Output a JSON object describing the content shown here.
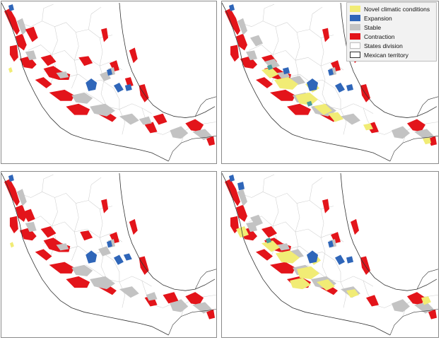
{
  "colors": {
    "novel": "#f1ec75",
    "expansion": "#2f66b9",
    "stable": "#c3c3c3",
    "contraction": "#e3141a",
    "states": "#d2d2d2",
    "territory": "#333333"
  },
  "legend": [
    {
      "label": "Novel climatic conditions",
      "color": "#f1ec75",
      "icon": "yellow-swatch"
    },
    {
      "label": "Expansion",
      "color": "#2f66b9",
      "icon": "blue-swatch"
    },
    {
      "label": "Stable",
      "color": "#c3c3c3",
      "icon": "gray-swatch"
    },
    {
      "label": "Contraction",
      "color": "#e3141a",
      "icon": "red-swatch"
    },
    {
      "label": "States division",
      "color": "#d2d2d2",
      "icon": "outline-swatch"
    },
    {
      "label": "Mexican territory",
      "color": "#333333",
      "icon": "outline-swatch"
    }
  ]
}
